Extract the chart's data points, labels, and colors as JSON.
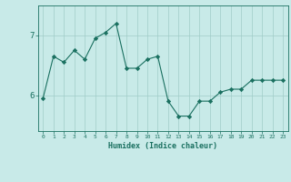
{
  "x": [
    0,
    1,
    2,
    3,
    4,
    5,
    6,
    7,
    8,
    9,
    10,
    11,
    12,
    13,
    14,
    15,
    16,
    17,
    18,
    19,
    20,
    21,
    22,
    23
  ],
  "y": [
    5.95,
    6.65,
    6.55,
    6.75,
    6.6,
    6.95,
    7.05,
    7.2,
    6.45,
    6.45,
    6.6,
    6.65,
    5.9,
    5.65,
    5.65,
    5.9,
    5.9,
    6.05,
    6.1,
    6.1,
    6.25,
    6.25,
    6.25,
    6.25
  ],
  "xlabel": "Humidex (Indice chaleur)",
  "yticks": [
    6,
    7
  ],
  "xticks": [
    0,
    1,
    2,
    3,
    4,
    5,
    6,
    7,
    8,
    9,
    10,
    11,
    12,
    13,
    14,
    15,
    16,
    17,
    18,
    19,
    20,
    21,
    22,
    23
  ],
  "ylim": [
    5.4,
    7.5
  ],
  "xlim": [
    -0.5,
    23.5
  ],
  "line_color": "#1a7060",
  "marker_color": "#1a7060",
  "bg_color": "#c8eae8",
  "grid_color": "#a0ccc8",
  "axis_color": "#1a7060",
  "label_color": "#1a7060"
}
